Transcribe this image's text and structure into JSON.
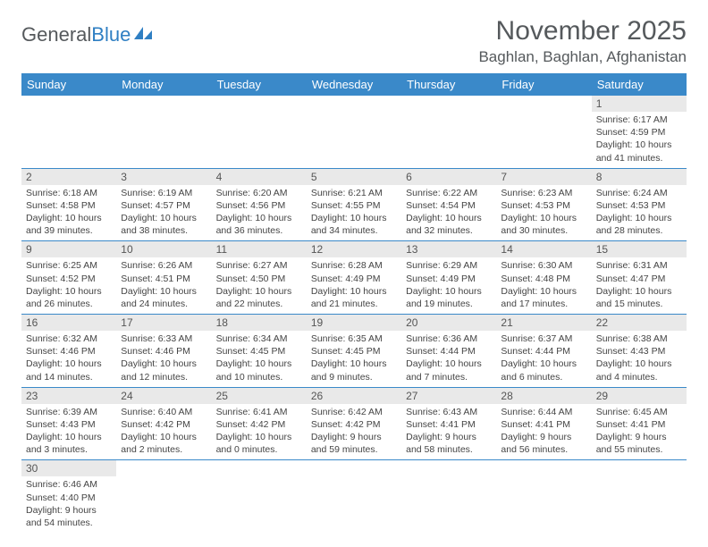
{
  "logo": {
    "text1": "General",
    "text2": "Blue"
  },
  "title": "November 2025",
  "location": "Baghlan, Baghlan, Afghanistan",
  "day_headers": [
    "Sunday",
    "Monday",
    "Tuesday",
    "Wednesday",
    "Thursday",
    "Friday",
    "Saturday"
  ],
  "colors": {
    "header_bg": "#3a89c9",
    "header_text": "#ffffff",
    "daynum_bg": "#e9e9e9",
    "border": "#3a89c9",
    "text": "#444444",
    "title_text": "#55595c"
  },
  "weeks": [
    [
      null,
      null,
      null,
      null,
      null,
      null,
      {
        "n": "1",
        "sr": "Sunrise: 6:17 AM",
        "ss": "Sunset: 4:59 PM",
        "dl": "Daylight: 10 hours and 41 minutes."
      }
    ],
    [
      {
        "n": "2",
        "sr": "Sunrise: 6:18 AM",
        "ss": "Sunset: 4:58 PM",
        "dl": "Daylight: 10 hours and 39 minutes."
      },
      {
        "n": "3",
        "sr": "Sunrise: 6:19 AM",
        "ss": "Sunset: 4:57 PM",
        "dl": "Daylight: 10 hours and 38 minutes."
      },
      {
        "n": "4",
        "sr": "Sunrise: 6:20 AM",
        "ss": "Sunset: 4:56 PM",
        "dl": "Daylight: 10 hours and 36 minutes."
      },
      {
        "n": "5",
        "sr": "Sunrise: 6:21 AM",
        "ss": "Sunset: 4:55 PM",
        "dl": "Daylight: 10 hours and 34 minutes."
      },
      {
        "n": "6",
        "sr": "Sunrise: 6:22 AM",
        "ss": "Sunset: 4:54 PM",
        "dl": "Daylight: 10 hours and 32 minutes."
      },
      {
        "n": "7",
        "sr": "Sunrise: 6:23 AM",
        "ss": "Sunset: 4:53 PM",
        "dl": "Daylight: 10 hours and 30 minutes."
      },
      {
        "n": "8",
        "sr": "Sunrise: 6:24 AM",
        "ss": "Sunset: 4:53 PM",
        "dl": "Daylight: 10 hours and 28 minutes."
      }
    ],
    [
      {
        "n": "9",
        "sr": "Sunrise: 6:25 AM",
        "ss": "Sunset: 4:52 PM",
        "dl": "Daylight: 10 hours and 26 minutes."
      },
      {
        "n": "10",
        "sr": "Sunrise: 6:26 AM",
        "ss": "Sunset: 4:51 PM",
        "dl": "Daylight: 10 hours and 24 minutes."
      },
      {
        "n": "11",
        "sr": "Sunrise: 6:27 AM",
        "ss": "Sunset: 4:50 PM",
        "dl": "Daylight: 10 hours and 22 minutes."
      },
      {
        "n": "12",
        "sr": "Sunrise: 6:28 AM",
        "ss": "Sunset: 4:49 PM",
        "dl": "Daylight: 10 hours and 21 minutes."
      },
      {
        "n": "13",
        "sr": "Sunrise: 6:29 AM",
        "ss": "Sunset: 4:49 PM",
        "dl": "Daylight: 10 hours and 19 minutes."
      },
      {
        "n": "14",
        "sr": "Sunrise: 6:30 AM",
        "ss": "Sunset: 4:48 PM",
        "dl": "Daylight: 10 hours and 17 minutes."
      },
      {
        "n": "15",
        "sr": "Sunrise: 6:31 AM",
        "ss": "Sunset: 4:47 PM",
        "dl": "Daylight: 10 hours and 15 minutes."
      }
    ],
    [
      {
        "n": "16",
        "sr": "Sunrise: 6:32 AM",
        "ss": "Sunset: 4:46 PM",
        "dl": "Daylight: 10 hours and 14 minutes."
      },
      {
        "n": "17",
        "sr": "Sunrise: 6:33 AM",
        "ss": "Sunset: 4:46 PM",
        "dl": "Daylight: 10 hours and 12 minutes."
      },
      {
        "n": "18",
        "sr": "Sunrise: 6:34 AM",
        "ss": "Sunset: 4:45 PM",
        "dl": "Daylight: 10 hours and 10 minutes."
      },
      {
        "n": "19",
        "sr": "Sunrise: 6:35 AM",
        "ss": "Sunset: 4:45 PM",
        "dl": "Daylight: 10 hours and 9 minutes."
      },
      {
        "n": "20",
        "sr": "Sunrise: 6:36 AM",
        "ss": "Sunset: 4:44 PM",
        "dl": "Daylight: 10 hours and 7 minutes."
      },
      {
        "n": "21",
        "sr": "Sunrise: 6:37 AM",
        "ss": "Sunset: 4:44 PM",
        "dl": "Daylight: 10 hours and 6 minutes."
      },
      {
        "n": "22",
        "sr": "Sunrise: 6:38 AM",
        "ss": "Sunset: 4:43 PM",
        "dl": "Daylight: 10 hours and 4 minutes."
      }
    ],
    [
      {
        "n": "23",
        "sr": "Sunrise: 6:39 AM",
        "ss": "Sunset: 4:43 PM",
        "dl": "Daylight: 10 hours and 3 minutes."
      },
      {
        "n": "24",
        "sr": "Sunrise: 6:40 AM",
        "ss": "Sunset: 4:42 PM",
        "dl": "Daylight: 10 hours and 2 minutes."
      },
      {
        "n": "25",
        "sr": "Sunrise: 6:41 AM",
        "ss": "Sunset: 4:42 PM",
        "dl": "Daylight: 10 hours and 0 minutes."
      },
      {
        "n": "26",
        "sr": "Sunrise: 6:42 AM",
        "ss": "Sunset: 4:42 PM",
        "dl": "Daylight: 9 hours and 59 minutes."
      },
      {
        "n": "27",
        "sr": "Sunrise: 6:43 AM",
        "ss": "Sunset: 4:41 PM",
        "dl": "Daylight: 9 hours and 58 minutes."
      },
      {
        "n": "28",
        "sr": "Sunrise: 6:44 AM",
        "ss": "Sunset: 4:41 PM",
        "dl": "Daylight: 9 hours and 56 minutes."
      },
      {
        "n": "29",
        "sr": "Sunrise: 6:45 AM",
        "ss": "Sunset: 4:41 PM",
        "dl": "Daylight: 9 hours and 55 minutes."
      }
    ],
    [
      {
        "n": "30",
        "sr": "Sunrise: 6:46 AM",
        "ss": "Sunset: 4:40 PM",
        "dl": "Daylight: 9 hours and 54 minutes."
      },
      null,
      null,
      null,
      null,
      null,
      null
    ]
  ]
}
